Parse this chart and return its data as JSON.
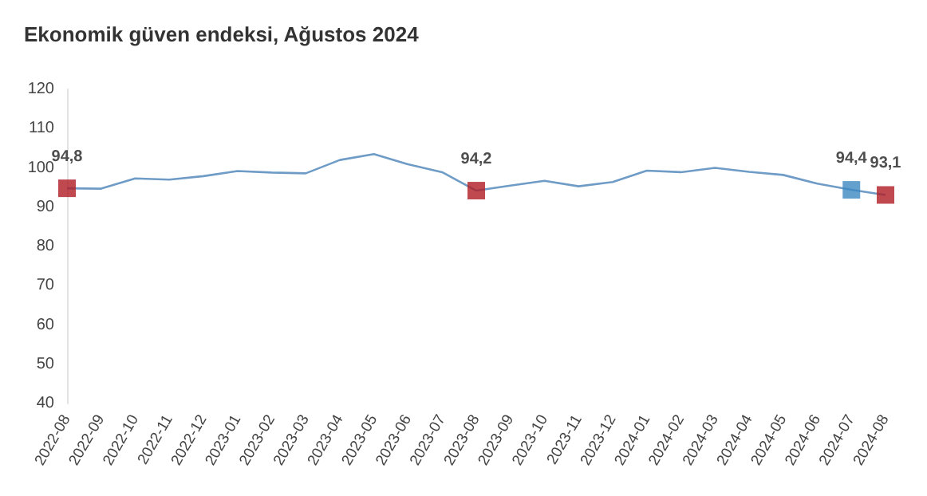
{
  "chart_data": {
    "type": "line",
    "title": "Ekonomik güven endeksi, Ağustos 2024",
    "categories": [
      "2022-08",
      "2022-09",
      "2022-10",
      "2022-11",
      "2022-12",
      "2023-01",
      "2023-02",
      "2023-03",
      "2023-04",
      "2023-05",
      "2023-06",
      "2023-07",
      "2023-08",
      "2023-09",
      "2023-10",
      "2023-11",
      "2023-12",
      "2024-01",
      "2024-02",
      "2024-03",
      "2024-04",
      "2024-05",
      "2024-06",
      "2024-07",
      "2024-08"
    ],
    "series": [
      {
        "color": "#6f9cc6",
        "marker": "none",
        "values": [
          94.8,
          94.7,
          97.3,
          97.0,
          97.9,
          99.2,
          98.8,
          98.6,
          102.0,
          103.5,
          100.9,
          98.9,
          94.2,
          95.5,
          96.7,
          95.3,
          96.4,
          99.3,
          98.9,
          100.0,
          99.0,
          98.2,
          96.0,
          94.4,
          93.1
        ]
      },
      {
        "type": "scatter",
        "marker": "square",
        "values": [
          94.8,
          null,
          null,
          null,
          null,
          null,
          null,
          null,
          null,
          null,
          null,
          null,
          94.2,
          null,
          null,
          null,
          null,
          null,
          null,
          null,
          null,
          null,
          null,
          94.4,
          93.1
        ],
        "colors": [
          "#b01c24",
          null,
          null,
          null,
          null,
          null,
          null,
          null,
          null,
          null,
          null,
          null,
          "#b01c24",
          null,
          null,
          null,
          null,
          null,
          null,
          null,
          null,
          null,
          null,
          "#3c88c2",
          "#b01c24"
        ],
        "value_labels": [
          "94,8",
          null,
          null,
          null,
          null,
          null,
          null,
          null,
          null,
          null,
          null,
          null,
          "94,2",
          null,
          null,
          null,
          null,
          null,
          null,
          null,
          null,
          null,
          null,
          "94,4",
          "93,1"
        ]
      }
    ],
    "ylim": [
      40,
      120
    ],
    "yticks": [
      40,
      50,
      60,
      70,
      80,
      90,
      100,
      110,
      120
    ],
    "grid": false
  }
}
